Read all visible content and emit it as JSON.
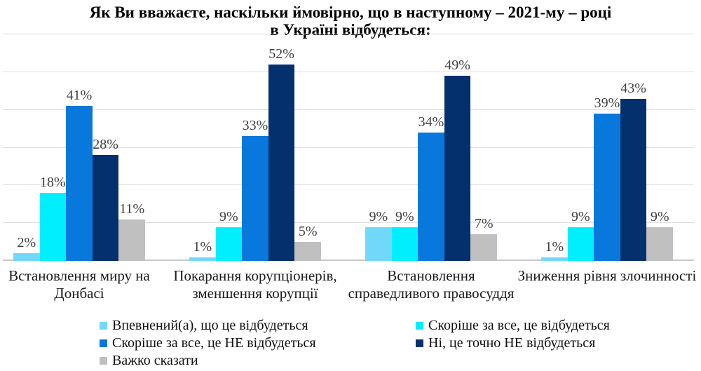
{
  "chart_data": {
    "type": "bar",
    "title": "Як Ви вважаєте, наскільки ймовірно, що в наступному – 2021-му – році\nв Україні відбудеться:",
    "categories": [
      "Встановлення миру на\nДонбасі",
      "Покарання корупціонерів,\nзменшення корупції",
      "Встановлення\nсправедливого правосуддя",
      "Зниження рівня злочинності"
    ],
    "series": [
      {
        "name": "Впевнений(а), що це відбудеться",
        "color": "#72D8F9",
        "values": [
          2,
          1,
          9,
          1
        ]
      },
      {
        "name": "Скоріше за все, це відбудеться",
        "color": "#00EFFF",
        "values": [
          18,
          9,
          9,
          9
        ]
      },
      {
        "name": "Скоріше за все,  це НЕ відбудеться",
        "color": "#0878DC",
        "values": [
          41,
          33,
          34,
          39
        ]
      },
      {
        "name": "Ні, це точно НЕ відбудеться",
        "color": "#04306E",
        "values": [
          28,
          52,
          49,
          43
        ]
      },
      {
        "name": "Важко сказати",
        "color": "#C0C0C0",
        "values": [
          11,
          5,
          7,
          9
        ]
      }
    ],
    "ylim": [
      0,
      60
    ],
    "grid": true,
    "grid_step": 10,
    "value_suffix": "%",
    "legend_position": "bottom",
    "value_label_color": "#3F3F3F",
    "gridline_color": "#DCDCDC",
    "axis_line_color": "#C9C9C9"
  },
  "legend": {
    "columns": [
      [
        0,
        2,
        4
      ],
      [
        1,
        3
      ]
    ]
  }
}
